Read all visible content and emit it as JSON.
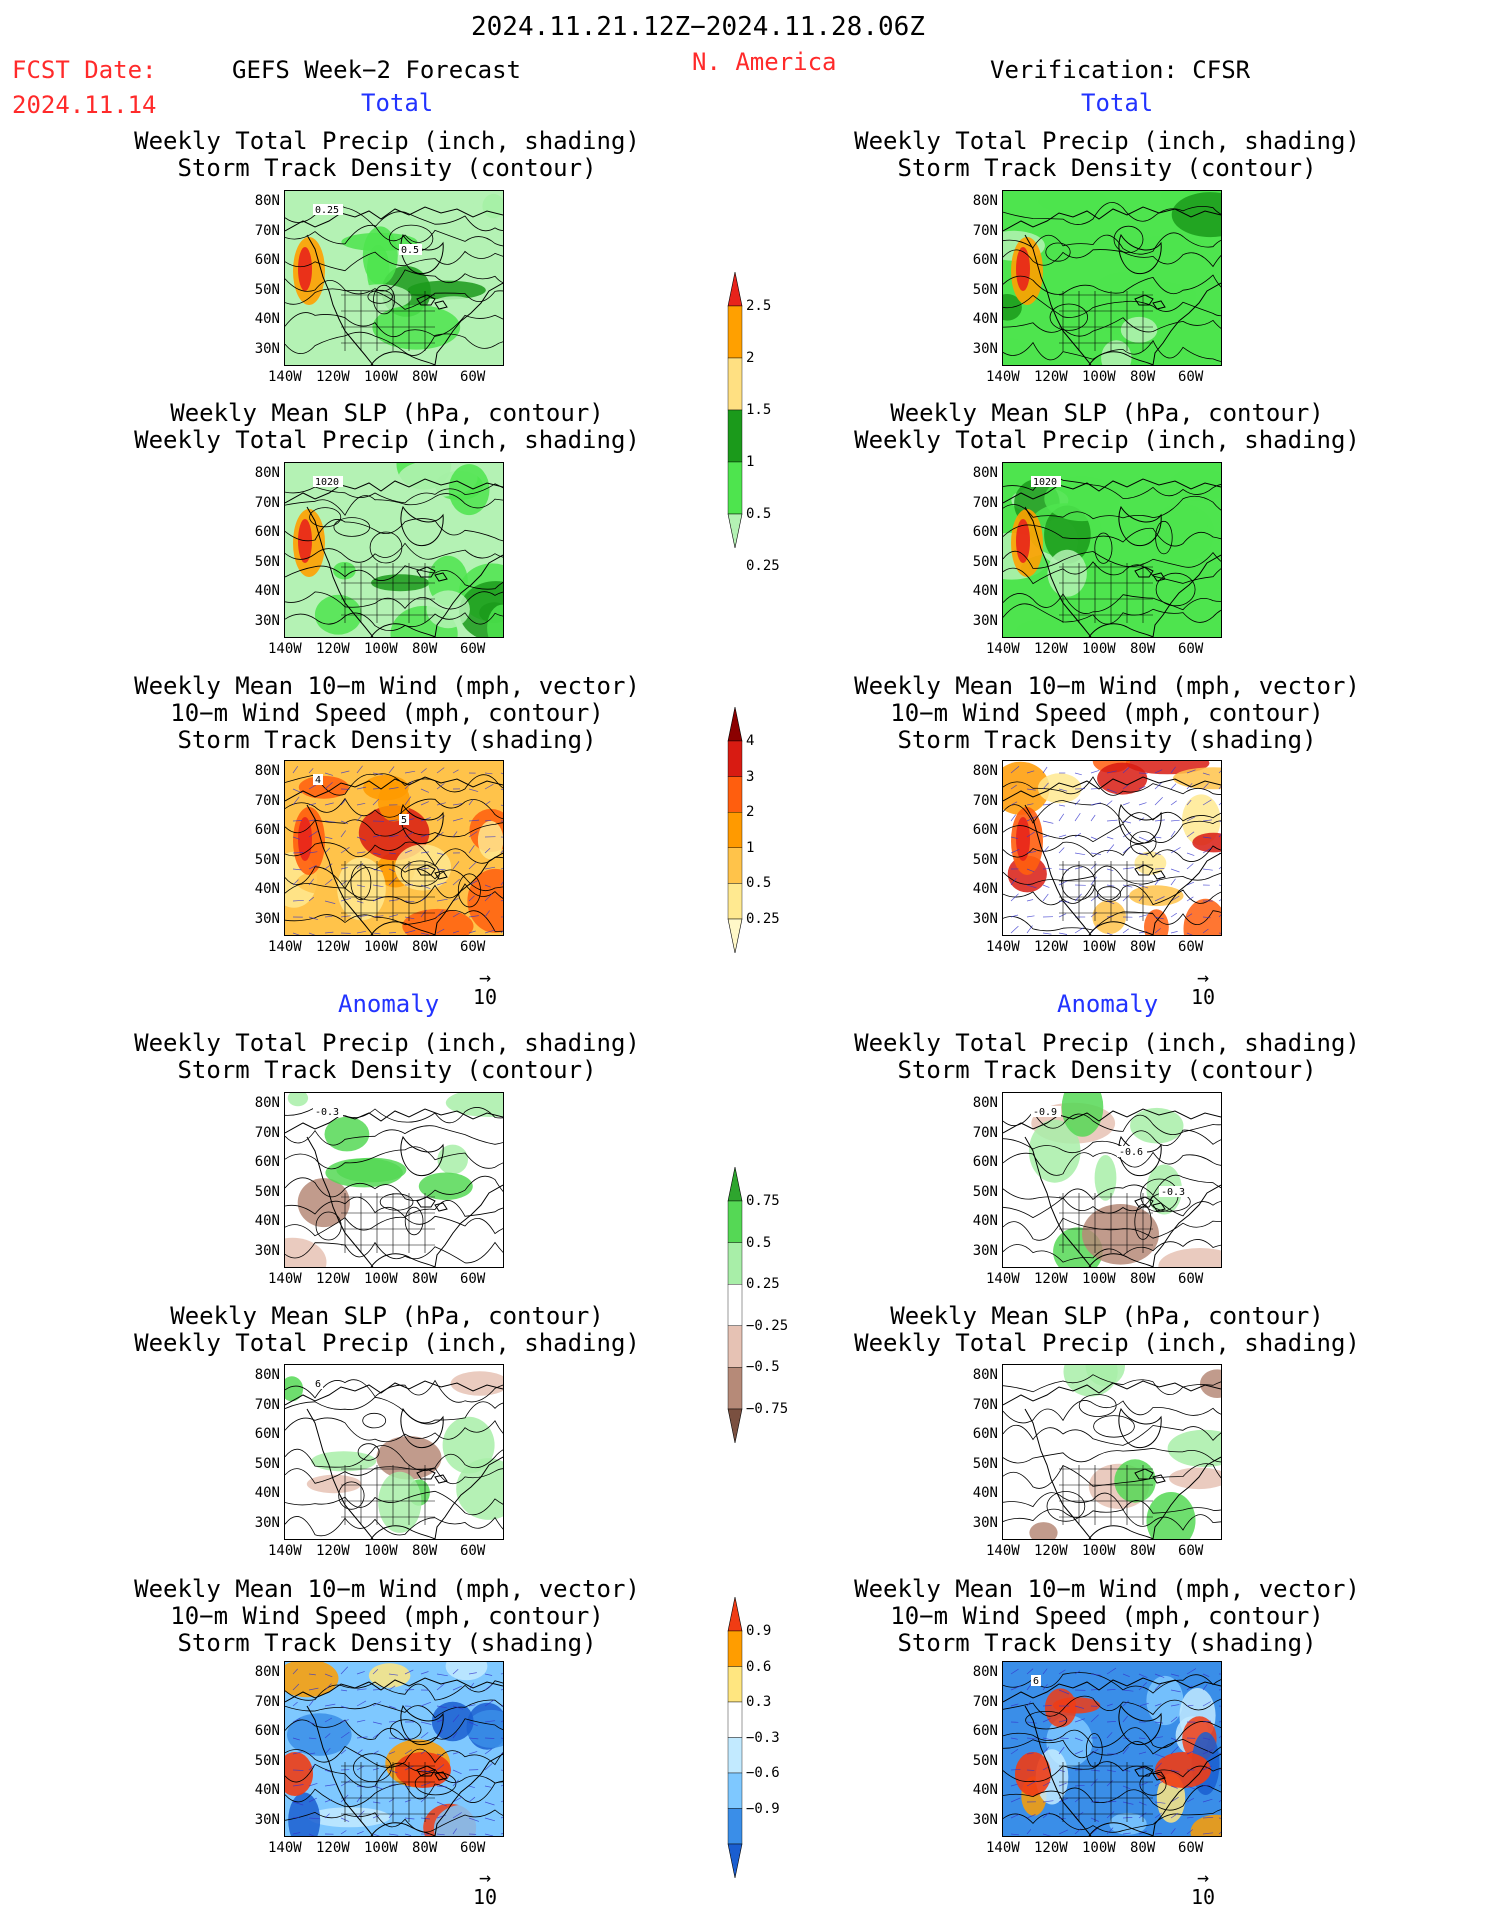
{
  "header": {
    "period": "2024.11.21.12Z−2024.11.28.06Z",
    "fcst_label": "FCST Date:",
    "fcst_date": "2024.11.14",
    "left_title": "GEFS Week−2 Forecast",
    "region": "N. America",
    "right_title": "Verification: CFSR"
  },
  "sections": {
    "total": "Total",
    "anomaly": "Anomaly"
  },
  "panel_titles": {
    "precip_storm": [
      "Weekly Total Precip (inch, shading)",
      "Storm Track Density (contour)"
    ],
    "slp_precip": [
      "Weekly Mean SLP (hPa, contour)",
      "Weekly Total Precip (inch, shading)"
    ],
    "wind_storm": [
      "Weekly Mean 10−m Wind (mph, vector)",
      "10−m Wind Speed (mph, contour)",
      "Storm Track Density (shading)"
    ]
  },
  "axes": {
    "lat_ticks": [
      "80N",
      "70N",
      "60N",
      "50N",
      "40N",
      "30N"
    ],
    "lon_ticks": [
      "140W",
      "120W",
      "100W",
      "80W",
      "60W"
    ]
  },
  "vector_ref": "10",
  "contour_labels": {
    "p1": [
      "0.25",
      "0.5"
    ],
    "p2": [
      "1020"
    ],
    "p3": [
      "4",
      "5"
    ],
    "p4": [
      "-0.3"
    ],
    "p5": [
      "6"
    ],
    "r2": [
      "1020"
    ],
    "r4": [
      "-0.9",
      "-0.6",
      "-0.3"
    ],
    "r6": [
      "6"
    ]
  },
  "colorbars": {
    "precip_total": {
      "labels": [
        "2.5",
        "2",
        "1.5",
        "1",
        "0.5",
        "0.25"
      ],
      "colors": [
        "#e8231b",
        "#ffa000",
        "#ffe082",
        "#1b9a1b",
        "#4ee44e",
        "#b4f2b4"
      ]
    },
    "storm_total": {
      "labels": [
        "4",
        "3",
        "2",
        "1",
        "0.5",
        "0.25"
      ],
      "colors": [
        "#8b0000",
        "#d81b12",
        "#ff5e0e",
        "#ff9a00",
        "#ffc34a",
        "#ffe990",
        "#fff8c8"
      ]
    },
    "precip_anom": {
      "labels": [
        "0.75",
        "0.5",
        "0.25",
        "−0.25",
        "−0.5",
        "−0.75"
      ],
      "colors": [
        "#2ea52e",
        "#55d855",
        "#a8eea8",
        "#ffffff",
        "#e6c2b4",
        "#b68a78",
        "#7a5040"
      ]
    },
    "storm_anom": {
      "labels": [
        "0.9",
        "0.6",
        "0.3",
        "−0.3",
        "−0.6",
        "−0.9"
      ],
      "colors": [
        "#f03c14",
        "#ff9d00",
        "#ffe680",
        "#ffffff",
        "#c2eaff",
        "#7ec8ff",
        "#3a8ee8",
        "#1a5ed0"
      ]
    }
  }
}
